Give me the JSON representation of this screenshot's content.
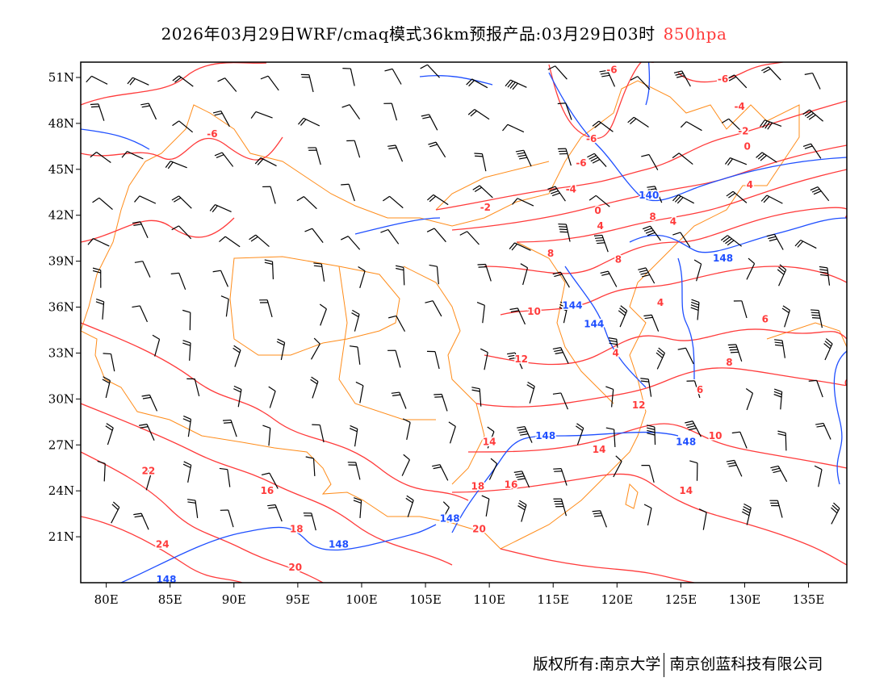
{
  "title": {
    "main": "2026年03月29日WRF/cmaq模式36km预报产品:03月29日03时",
    "level": "850hpa"
  },
  "footer": {
    "left": "版权所有:南京大学",
    "right": "南京创蓝科技有限公司"
  },
  "colors": {
    "temperature": "#ff3b3b",
    "height": "#1f4fff",
    "boundary": "#ff8c1a",
    "wind": "#000000"
  },
  "map": {
    "lon_range": [
      78,
      138
    ],
    "lat_range": [
      18,
      52
    ],
    "lon_ticks": [
      "80E",
      "85E",
      "90E",
      "95E",
      "100E",
      "105E",
      "110E",
      "115E",
      "120E",
      "125E",
      "130E",
      "135E"
    ],
    "lat_ticks": [
      "51N",
      "48N",
      "45N",
      "42N",
      "39N",
      "36N",
      "33N",
      "30N",
      "27N",
      "24N",
      "21N"
    ],
    "temperature_labels": [
      {
        "t": "-6",
        "lon": 119.6,
        "lat": 51.5
      },
      {
        "t": "-6",
        "lon": 128.3,
        "lat": 50.9
      },
      {
        "t": "-4",
        "lon": 129.6,
        "lat": 49.1
      },
      {
        "t": "-2",
        "lon": 129.9,
        "lat": 47.5
      },
      {
        "t": "0",
        "lon": 130.2,
        "lat": 46.5
      },
      {
        "t": "-6",
        "lon": 88.3,
        "lat": 47.3
      },
      {
        "t": "-6",
        "lon": 118.0,
        "lat": 47.0
      },
      {
        "t": "-6",
        "lon": 117.2,
        "lat": 45.4
      },
      {
        "t": "-4",
        "lon": 116.4,
        "lat": 43.7
      },
      {
        "t": "-2",
        "lon": 109.7,
        "lat": 42.5
      },
      {
        "t": "0",
        "lon": 118.5,
        "lat": 42.3
      },
      {
        "t": "4",
        "lon": 118.7,
        "lat": 41.3
      },
      {
        "t": "8",
        "lon": 122.8,
        "lat": 41.9
      },
      {
        "t": "4",
        "lon": 124.4,
        "lat": 41.6
      },
      {
        "t": "4",
        "lon": 130.4,
        "lat": 44.0
      },
      {
        "t": "8",
        "lon": 114.8,
        "lat": 39.5
      },
      {
        "t": "8",
        "lon": 120.1,
        "lat": 39.1
      },
      {
        "t": "4",
        "lon": 123.4,
        "lat": 36.3
      },
      {
        "t": "10",
        "lon": 113.5,
        "lat": 35.7
      },
      {
        "t": "12",
        "lon": 112.5,
        "lat": 32.6
      },
      {
        "t": "4",
        "lon": 119.9,
        "lat": 33.0
      },
      {
        "t": "6",
        "lon": 131.6,
        "lat": 35.2
      },
      {
        "t": "8",
        "lon": 128.8,
        "lat": 32.4
      },
      {
        "t": "6",
        "lon": 126.5,
        "lat": 30.6
      },
      {
        "t": "12",
        "lon": 121.7,
        "lat": 29.6
      },
      {
        "t": "10",
        "lon": 127.7,
        "lat": 27.6
      },
      {
        "t": "14",
        "lon": 110.0,
        "lat": 27.2
      },
      {
        "t": "14",
        "lon": 118.6,
        "lat": 26.7
      },
      {
        "t": "14",
        "lon": 125.4,
        "lat": 24.0
      },
      {
        "t": "16",
        "lon": 92.6,
        "lat": 24.0
      },
      {
        "t": "18",
        "lon": 109.1,
        "lat": 24.3
      },
      {
        "t": "16",
        "lon": 111.7,
        "lat": 24.4
      },
      {
        "t": "22",
        "lon": 83.3,
        "lat": 25.3
      },
      {
        "t": "24",
        "lon": 84.4,
        "lat": 20.5
      },
      {
        "t": "18",
        "lon": 94.9,
        "lat": 21.5
      },
      {
        "t": "20",
        "lon": 109.2,
        "lat": 21.5
      },
      {
        "t": "20",
        "lon": 94.8,
        "lat": 19.0
      }
    ],
    "height_labels": [
      {
        "t": "140",
        "lon": 122.5,
        "lat": 43.3
      },
      {
        "t": "148",
        "lon": 128.3,
        "lat": 39.2
      },
      {
        "t": "144",
        "lon": 116.5,
        "lat": 36.1
      },
      {
        "t": "144",
        "lon": 118.2,
        "lat": 34.9
      },
      {
        "t": "148",
        "lon": 114.4,
        "lat": 27.6
      },
      {
        "t": "148",
        "lon": 125.4,
        "lat": 27.2
      },
      {
        "t": "148",
        "lon": 106.9,
        "lat": 22.2
      },
      {
        "t": "148",
        "lon": 98.2,
        "lat": 20.5
      },
      {
        "t": "148",
        "lon": 84.7,
        "lat": 18.2
      }
    ]
  }
}
